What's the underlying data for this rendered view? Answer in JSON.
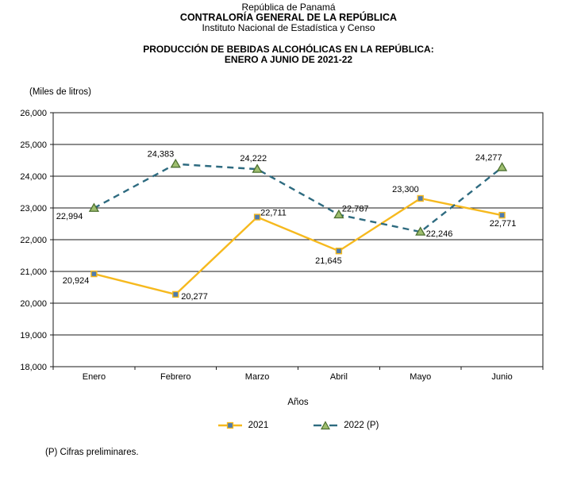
{
  "header": {
    "line1": "República de Panamá",
    "line2": "CONTRALORÍA GENERAL DE LA REPÚBLICA",
    "line3": "Instituto Nacional de Estadística y Censo",
    "title_line1": "PRODUCCIÓN DE BEBIDAS ALCOHÓLICAS EN LA REPÚBLICA:",
    "title_line2": "ENERO A JUNIO DE 2021-22"
  },
  "chart_data": {
    "type": "line",
    "ylabel": "(Miles de litros)",
    "xlabel": "Años",
    "categories": [
      "Enero",
      "Febrero",
      "Marzo",
      "Abril",
      "Mayo",
      "Junio"
    ],
    "ylim": [
      18000,
      26000
    ],
    "ytick_step": 1000,
    "grid": "horizontal",
    "legend_position": "bottom",
    "series": [
      {
        "name": "2021",
        "color": "#F6B91E",
        "line_style": "solid",
        "marker": "square",
        "marker_fill": "#4E7CB0",
        "marker_stroke": "#F6B91E",
        "values": [
          20924,
          20277,
          22711,
          21645,
          23300,
          22771
        ],
        "labels": [
          "20,924",
          "20,277",
          "22,711",
          "21,645",
          "23,300",
          "22,771"
        ],
        "label_offsets": [
          [
            -6,
            12,
            "end"
          ],
          [
            7,
            6,
            "start"
          ],
          [
            4,
            -2,
            "start"
          ],
          [
            -13,
            16,
            "middle"
          ],
          [
            -2,
            -8,
            "end"
          ],
          [
            1,
            14,
            "middle"
          ]
        ]
      },
      {
        "name": "2022 (P)",
        "color": "#2E6B80",
        "line_style": "dashed",
        "marker": "triangle",
        "marker_fill": "#9EBE6E",
        "marker_stroke": "#4C7030",
        "values": [
          22994,
          24383,
          24222,
          22787,
          22246,
          24277
        ],
        "labels": [
          "22,994",
          "24,383",
          "24,222",
          "22,787",
          "22,246",
          "24,277"
        ],
        "label_offsets": [
          [
            -14,
            14,
            "end"
          ],
          [
            -2,
            -9,
            "end"
          ],
          [
            12,
            -10,
            "end"
          ],
          [
            4,
            -4,
            "start"
          ],
          [
            7,
            6,
            "start"
          ],
          [
            0,
            -9,
            "end"
          ]
        ]
      }
    ]
  },
  "footnote": "(P) Cifras preliminares."
}
